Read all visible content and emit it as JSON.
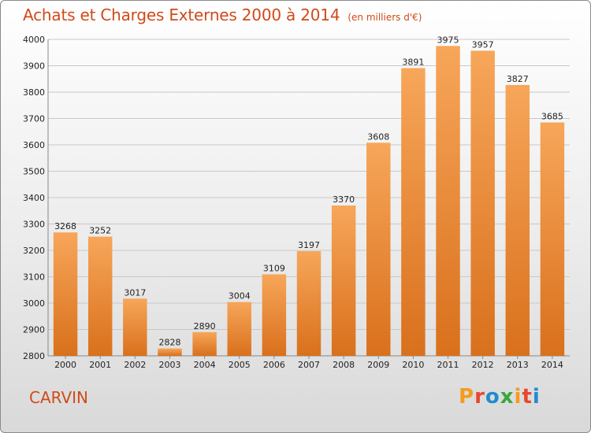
{
  "chart_data": {
    "type": "bar",
    "title": "Achats et Charges Externes 2000 à 2014",
    "subtitle": "(en milliers d'€)",
    "categories": [
      "2000",
      "2001",
      "2002",
      "2003",
      "2004",
      "2005",
      "2006",
      "2007",
      "2008",
      "2009",
      "2010",
      "2011",
      "2012",
      "2013",
      "2014"
    ],
    "values": [
      3268,
      3252,
      3017,
      2828,
      2890,
      3004,
      3109,
      3197,
      3370,
      3608,
      3891,
      3975,
      3957,
      3827,
      3685
    ],
    "ylim": [
      2800,
      4000
    ],
    "yticks": [
      2800,
      2900,
      3000,
      3100,
      3200,
      3300,
      3400,
      3500,
      3600,
      3700,
      3800,
      3900,
      4000
    ],
    "xlabel": "",
    "ylabel": "",
    "grid": true,
    "bar_color": "#f0892e"
  },
  "footer": {
    "commune": "CARVIN",
    "logo": "Proxiti"
  },
  "logo_colors": [
    "#f39c1f",
    "#e8482c",
    "#1f8ccf",
    "#3aa640",
    "#f39c1f",
    "#e8482c",
    "#1f8ccf"
  ]
}
